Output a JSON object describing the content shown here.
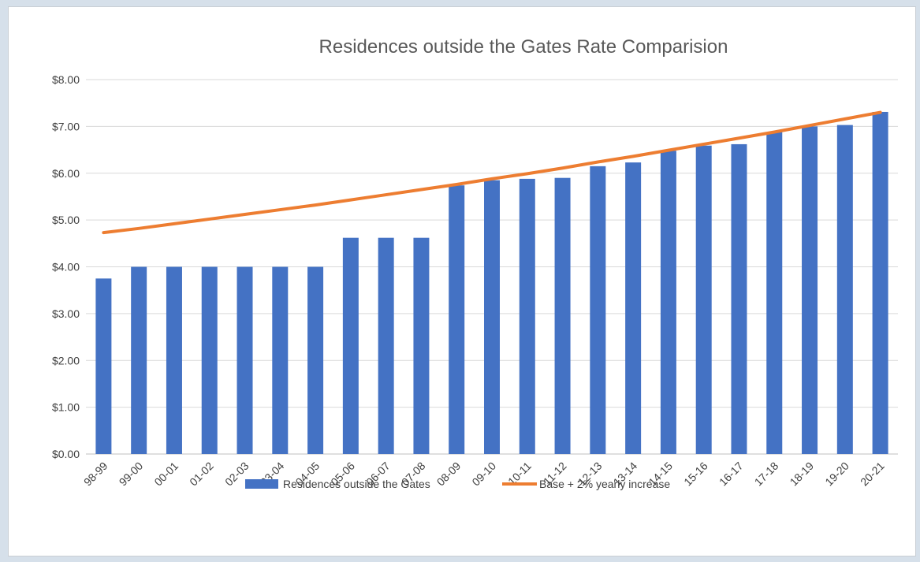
{
  "chart_data": {
    "type": "bar",
    "title": "Residences outside the Gates Rate Comparision",
    "categories": [
      "98-99",
      "99-00",
      "00-01",
      "01-02",
      "02-03",
      "03-04",
      "04-05",
      "05-06",
      "06-07",
      "07-08",
      "08-09",
      "09-10",
      "10-11",
      "11-12",
      "12-13",
      "13-14",
      "14-15",
      "15-16",
      "16-17",
      "17-18",
      "18-19",
      "19-20",
      "20-21"
    ],
    "series": [
      {
        "name": "Residences outside the Gates",
        "type": "bar",
        "color": "#4472c4",
        "values": [
          3.75,
          4.0,
          4.0,
          4.0,
          4.0,
          4.0,
          4.0,
          4.62,
          4.62,
          4.62,
          5.74,
          5.85,
          5.88,
          5.9,
          6.15,
          6.23,
          6.48,
          6.59,
          6.62,
          6.88,
          7.0,
          7.03,
          7.31
        ]
      },
      {
        "name": "Base + 2% yearly increase",
        "type": "line",
        "color": "#ed7d31",
        "values": [
          4.73,
          4.82,
          4.92,
          5.02,
          5.12,
          5.22,
          5.32,
          5.43,
          5.54,
          5.65,
          5.76,
          5.88,
          5.99,
          6.11,
          6.24,
          6.36,
          6.49,
          6.62,
          6.75,
          6.88,
          7.02,
          7.16,
          7.3
        ]
      }
    ],
    "ylim": [
      0,
      8
    ],
    "yticks": [
      "$0.00",
      "$1.00",
      "$2.00",
      "$3.00",
      "$4.00",
      "$5.00",
      "$6.00",
      "$7.00",
      "$8.00"
    ],
    "grid": true,
    "legend": "bottom"
  }
}
